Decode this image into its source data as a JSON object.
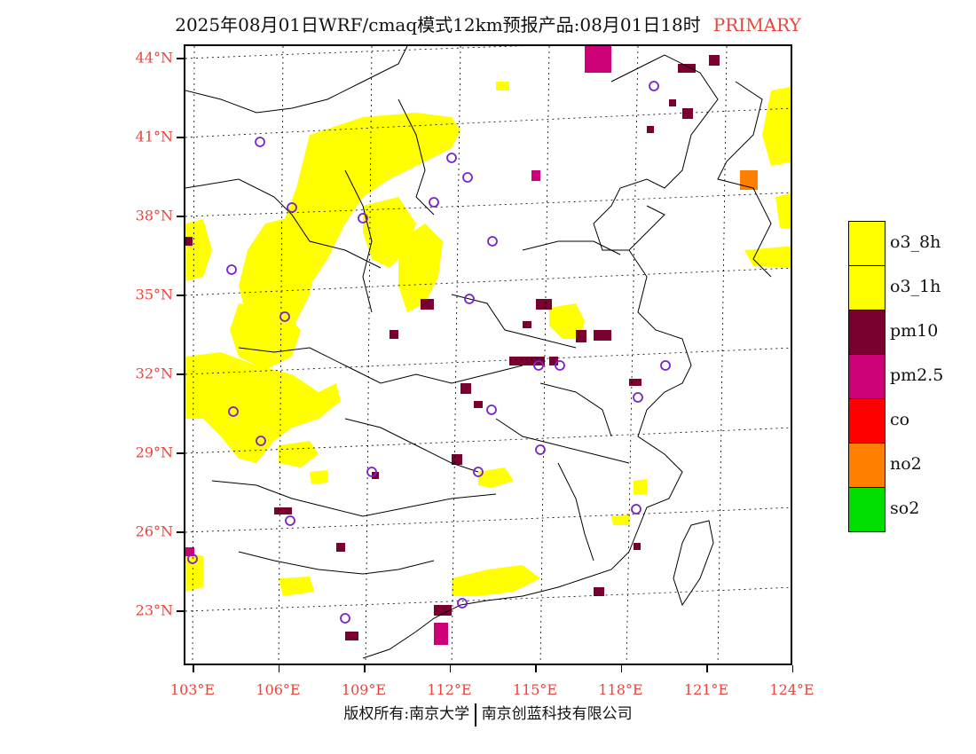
{
  "title": {
    "main": "2025年08月01日WRF/cmaq模式12km预报产品:08月01日18时",
    "tag": "PRIMARY"
  },
  "axes": {
    "latitudes": [
      "44°N",
      "41°N",
      "38°N",
      "35°N",
      "32°N",
      "29°N",
      "26°N",
      "23°N"
    ],
    "longitudes": [
      "103°E",
      "106°E",
      "109°E",
      "112°E",
      "115°E",
      "118°E",
      "121°E",
      "124°E"
    ]
  },
  "legend": [
    {
      "label": "o3_8h",
      "color": "#ffff00"
    },
    {
      "label": "o3_1h",
      "color": "#ffff00"
    },
    {
      "label": "pm10",
      "color": "#7a0030"
    },
    {
      "label": "pm2.5",
      "color": "#cc0077"
    },
    {
      "label": "co",
      "color": "#ff0000"
    },
    {
      "label": "no2",
      "color": "#ff7f00"
    },
    {
      "label": "so2",
      "color": "#00dd00"
    }
  ],
  "footer": {
    "left": "版权所有:南京大学",
    "right": "南京创蓝科技有限公司"
  }
}
